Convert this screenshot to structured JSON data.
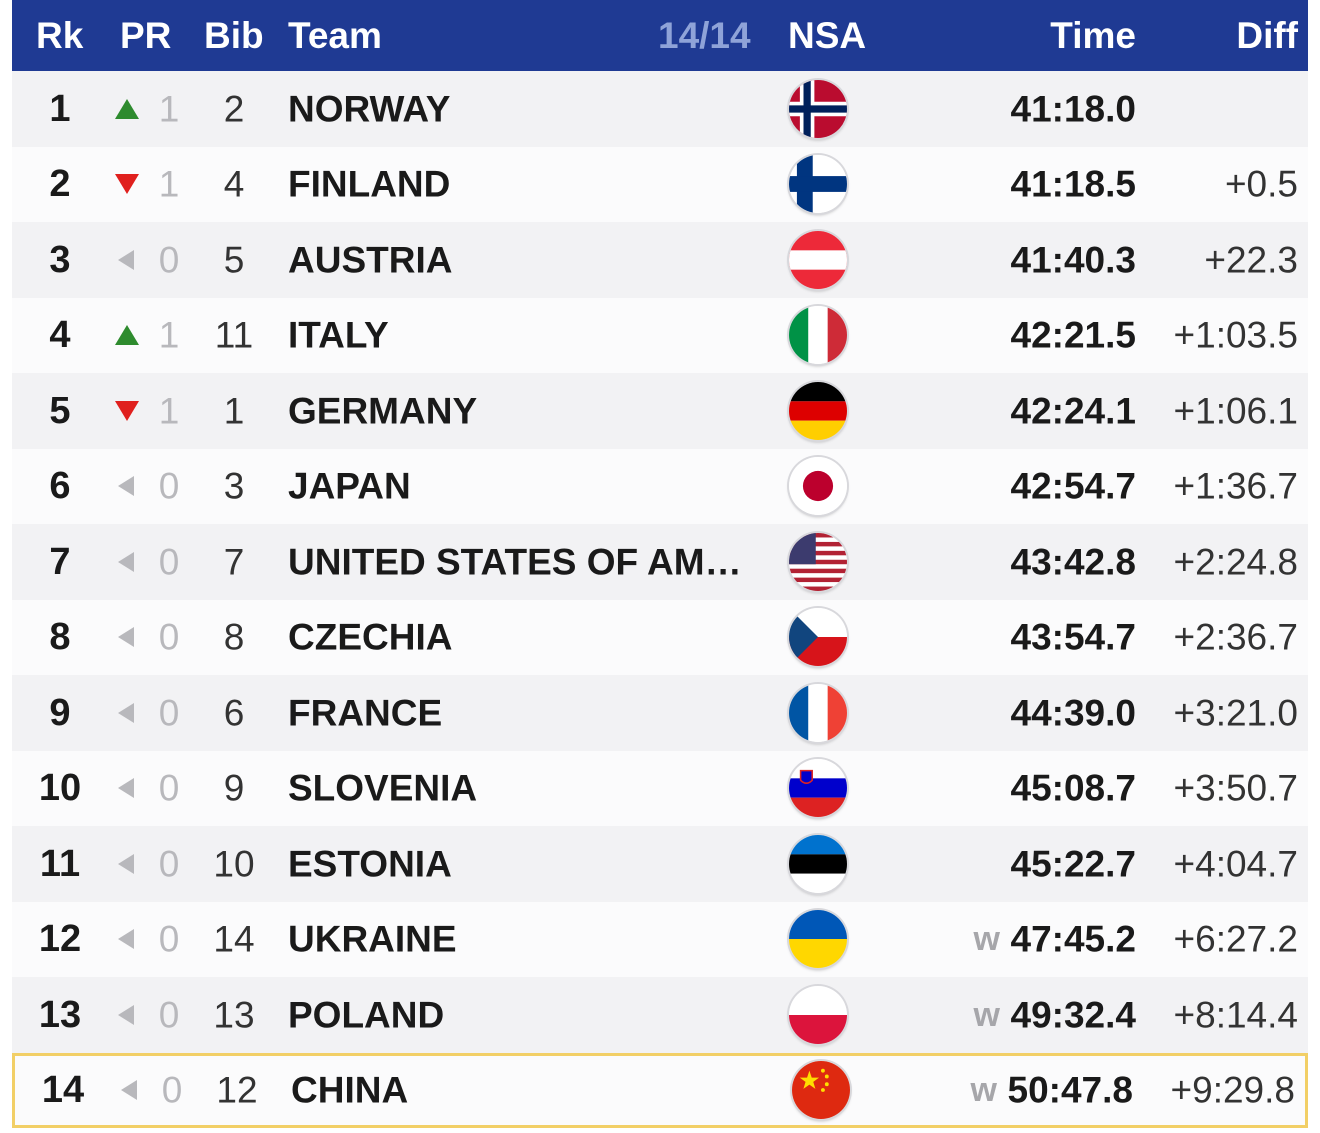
{
  "header": {
    "rk": "Rk",
    "pr": "PR",
    "bib": "Bib",
    "team": "Team",
    "count": "14/14",
    "nsa": "NSA",
    "time": "Time",
    "diff": "Diff"
  },
  "colors": {
    "header_bg": "#1f3a93",
    "up": "#2e8b2e",
    "down": "#e0201e",
    "neutral": "#b8b8bc",
    "highlight_border": "#f2cf66"
  },
  "rows": [
    {
      "rk": "1",
      "pr_dir": "up",
      "pr": "1",
      "bib": "2",
      "team": "NORWAY",
      "flag": "norway-flag-icon",
      "w": "",
      "time": "41:18.0",
      "diff": ""
    },
    {
      "rk": "2",
      "pr_dir": "down",
      "pr": "1",
      "bib": "4",
      "team": "FINLAND",
      "flag": "finland-flag-icon",
      "w": "",
      "time": "41:18.5",
      "diff": "+0.5"
    },
    {
      "rk": "3",
      "pr_dir": "same",
      "pr": "0",
      "bib": "5",
      "team": "AUSTRIA",
      "flag": "austria-flag-icon",
      "w": "",
      "time": "41:40.3",
      "diff": "+22.3"
    },
    {
      "rk": "4",
      "pr_dir": "up",
      "pr": "1",
      "bib": "11",
      "team": "ITALY",
      "flag": "italy-flag-icon",
      "w": "",
      "time": "42:21.5",
      "diff": "+1:03.5"
    },
    {
      "rk": "5",
      "pr_dir": "down",
      "pr": "1",
      "bib": "1",
      "team": "GERMANY",
      "flag": "germany-flag-icon",
      "w": "",
      "time": "42:24.1",
      "diff": "+1:06.1"
    },
    {
      "rk": "6",
      "pr_dir": "same",
      "pr": "0",
      "bib": "3",
      "team": "JAPAN",
      "flag": "japan-flag-icon",
      "w": "",
      "time": "42:54.7",
      "diff": "+1:36.7"
    },
    {
      "rk": "7",
      "pr_dir": "same",
      "pr": "0",
      "bib": "7",
      "team": "UNITED STATES OF AM…",
      "flag": "usa-flag-icon",
      "w": "",
      "time": "43:42.8",
      "diff": "+2:24.8"
    },
    {
      "rk": "8",
      "pr_dir": "same",
      "pr": "0",
      "bib": "8",
      "team": "CZECHIA",
      "flag": "czechia-flag-icon",
      "w": "",
      "time": "43:54.7",
      "diff": "+2:36.7"
    },
    {
      "rk": "9",
      "pr_dir": "same",
      "pr": "0",
      "bib": "6",
      "team": "FRANCE",
      "flag": "france-flag-icon",
      "w": "",
      "time": "44:39.0",
      "diff": "+3:21.0"
    },
    {
      "rk": "10",
      "pr_dir": "same",
      "pr": "0",
      "bib": "9",
      "team": "SLOVENIA",
      "flag": "slovenia-flag-icon",
      "w": "",
      "time": "45:08.7",
      "diff": "+3:50.7"
    },
    {
      "rk": "11",
      "pr_dir": "same",
      "pr": "0",
      "bib": "10",
      "team": "ESTONIA",
      "flag": "estonia-flag-icon",
      "w": "",
      "time": "45:22.7",
      "diff": "+4:04.7"
    },
    {
      "rk": "12",
      "pr_dir": "same",
      "pr": "0",
      "bib": "14",
      "team": "UKRAINE",
      "flag": "ukraine-flag-icon",
      "w": "w",
      "time": "47:45.2",
      "diff": "+6:27.2"
    },
    {
      "rk": "13",
      "pr_dir": "same",
      "pr": "0",
      "bib": "13",
      "team": "POLAND",
      "flag": "poland-flag-icon",
      "w": "w",
      "time": "49:32.4",
      "diff": "+8:14.4"
    },
    {
      "rk": "14",
      "pr_dir": "same",
      "pr": "0",
      "bib": "12",
      "team": "CHINA",
      "flag": "china-flag-icon",
      "w": "w",
      "time": "50:47.8",
      "diff": "+9:29.8",
      "highlighted": true
    }
  ]
}
